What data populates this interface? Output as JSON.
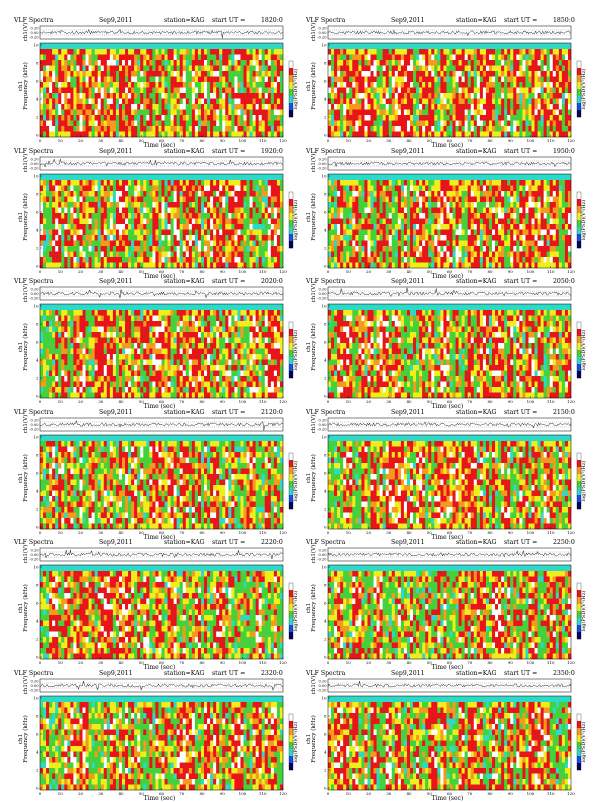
{
  "header": {
    "title": "VLF Spectra",
    "date": "Sep9,2011",
    "station": "station=KAG",
    "start_prefix": "start  UT  ="
  },
  "axes": {
    "ch_label": "ch1(V)",
    "freq_label_prefix": "ch1",
    "freq_label": "Frequency  (kHz)",
    "time_label": "Time  (sec)",
    "colorbar_label": "log(PSD)(V²/Hz)",
    "ch_ticks": [
      "0.20",
      "0.00",
      "-0.20"
    ],
    "freq_ticks": [
      "10",
      "8",
      "6",
      "4",
      "2",
      "0"
    ],
    "time_ticks": [
      "0",
      "10",
      "20",
      "30",
      "40",
      "50",
      "60",
      "70",
      "80",
      "90",
      "100",
      "110",
      "120"
    ]
  },
  "colors": {
    "white": "#ffffff",
    "red": "#e8141a",
    "orange": "#f49a1c",
    "yellow": "#f2ee1c",
    "green": "#45d13c",
    "cyan": "#2ed9c8",
    "blue": "#1550e6",
    "navy": "#04045a"
  },
  "chart_data": [
    {
      "type": "heatmap",
      "panel": 0,
      "start_ut": "1820:0",
      "ch_ylim": [
        -0.2,
        0.2
      ],
      "freq_ylim": [
        0,
        10
      ],
      "time_xlim": [
        0,
        120
      ],
      "xlabel": "Time  (sec)",
      "ylabel": "Frequency  (kHz)",
      "colorbar": "log(PSD)(V²/Hz)",
      "red_fraction": 0.55
    },
    {
      "type": "heatmap",
      "panel": 1,
      "start_ut": "1850:0",
      "ch_ylim": [
        -0.2,
        0.2
      ],
      "freq_ylim": [
        0,
        10
      ],
      "time_xlim": [
        0,
        120
      ],
      "xlabel": "Time  (sec)",
      "ylabel": "Frequency  (kHz)",
      "colorbar": "log(PSD)(V²/Hz)",
      "red_fraction": 0.55
    },
    {
      "type": "heatmap",
      "panel": 2,
      "start_ut": "1920:0",
      "ch_ylim": [
        -0.2,
        0.2
      ],
      "freq_ylim": [
        0,
        10
      ],
      "time_xlim": [
        0,
        120
      ],
      "xlabel": "Time  (sec)",
      "ylabel": "Frequency  (kHz)",
      "colorbar": "log(PSD)(V²/Hz)",
      "red_fraction": 0.5
    },
    {
      "type": "heatmap",
      "panel": 3,
      "start_ut": "1950:0",
      "ch_ylim": [
        -0.2,
        0.2
      ],
      "freq_ylim": [
        0,
        10
      ],
      "time_xlim": [
        0,
        120
      ],
      "xlabel": "Time  (sec)",
      "ylabel": "Frequency  (kHz)",
      "colorbar": "log(PSD)(V²/Hz)",
      "red_fraction": 0.5
    },
    {
      "type": "heatmap",
      "panel": 4,
      "start_ut": "2020:0",
      "ch_ylim": [
        -0.2,
        0.2
      ],
      "freq_ylim": [
        0,
        10
      ],
      "time_xlim": [
        0,
        120
      ],
      "xlabel": "Time  (sec)",
      "ylabel": "Frequency  (kHz)",
      "colorbar": "log(PSD)(V²/Hz)",
      "red_fraction": 0.45
    },
    {
      "type": "heatmap",
      "panel": 5,
      "start_ut": "2050:0",
      "ch_ylim": [
        -0.2,
        0.2
      ],
      "freq_ylim": [
        0,
        10
      ],
      "time_xlim": [
        0,
        120
      ],
      "xlabel": "Time  (sec)",
      "ylabel": "Frequency  (kHz)",
      "colorbar": "log(PSD)(V²/Hz)",
      "red_fraction": 0.5
    },
    {
      "type": "heatmap",
      "panel": 6,
      "start_ut": "2120:0",
      "ch_ylim": [
        -0.2,
        0.2
      ],
      "freq_ylim": [
        0,
        10
      ],
      "time_xlim": [
        0,
        120
      ],
      "xlabel": "Time  (sec)",
      "ylabel": "Frequency  (kHz)",
      "colorbar": "log(PSD)(V²/Hz)",
      "red_fraction": 0.45
    },
    {
      "type": "heatmap",
      "panel": 7,
      "start_ut": "2150:0",
      "ch_ylim": [
        -0.2,
        0.2
      ],
      "freq_ylim": [
        0,
        10
      ],
      "time_xlim": [
        0,
        120
      ],
      "xlabel": "Time  (sec)",
      "ylabel": "Frequency  (kHz)",
      "colorbar": "log(PSD)(V²/Hz)",
      "red_fraction": 0.55
    },
    {
      "type": "heatmap",
      "panel": 8,
      "start_ut": "2220:0",
      "ch_ylim": [
        -0.2,
        0.2
      ],
      "freq_ylim": [
        0,
        10
      ],
      "time_xlim": [
        0,
        120
      ],
      "xlabel": "Time  (sec)",
      "ylabel": "Frequency  (kHz)",
      "colorbar": "log(PSD)(V²/Hz)",
      "red_fraction": 0.45
    },
    {
      "type": "heatmap",
      "panel": 9,
      "start_ut": "2250:0",
      "ch_ylim": [
        -0.2,
        0.2
      ],
      "freq_ylim": [
        0,
        10
      ],
      "time_xlim": [
        0,
        120
      ],
      "xlabel": "Time  (sec)",
      "ylabel": "Frequency  (kHz)",
      "colorbar": "log(PSD)(V²/Hz)",
      "red_fraction": 0.4
    },
    {
      "type": "heatmap",
      "panel": 10,
      "start_ut": "2320:0",
      "ch_ylim": [
        -0.2,
        0.2
      ],
      "freq_ylim": [
        0,
        10
      ],
      "time_xlim": [
        0,
        120
      ],
      "xlabel": "Time  (sec)",
      "ylabel": "Frequency  (kHz)",
      "colorbar": "log(PSD)(V²/Hz)",
      "red_fraction": 0.35
    },
    {
      "type": "heatmap",
      "panel": 11,
      "start_ut": "2350:0",
      "ch_ylim": [
        -0.2,
        0.2
      ],
      "freq_ylim": [
        0,
        10
      ],
      "time_xlim": [
        0,
        120
      ],
      "xlabel": "Time  (sec)",
      "ylabel": "Frequency  (kHz)",
      "colorbar": "log(PSD)(V²/Hz)",
      "red_fraction": 0.4
    }
  ]
}
